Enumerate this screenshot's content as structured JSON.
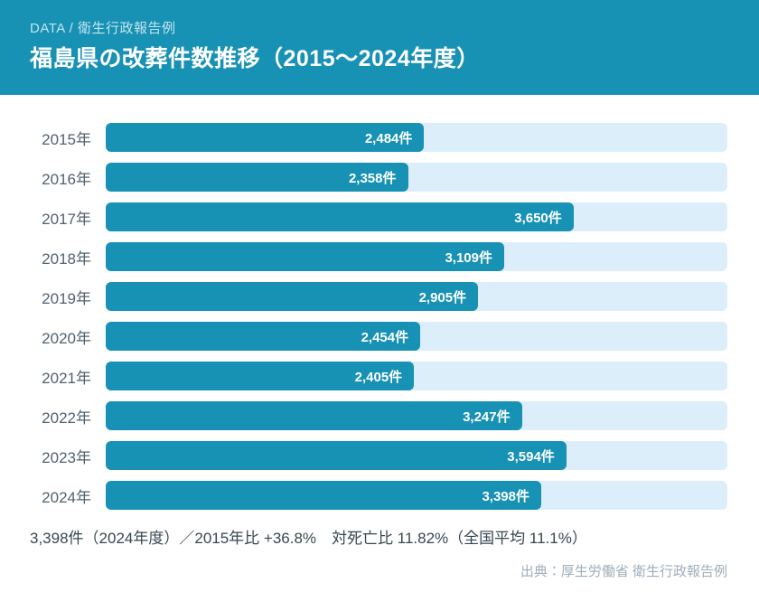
{
  "header": {
    "kicker": "DATA / 衛生行政報告例",
    "title": "福島県の改葬件数推移（2015～2024年度）"
  },
  "chart_data": {
    "type": "bar",
    "orientation": "horizontal",
    "title": "福島県の改葬件数推移（2015～2024年度）",
    "categories": [
      "2015年",
      "2016年",
      "2017年",
      "2018年",
      "2019年",
      "2020年",
      "2021年",
      "2022年",
      "2023年",
      "2024年"
    ],
    "values": [
      2484,
      2358,
      3650,
      3109,
      2905,
      2454,
      2405,
      3247,
      3594,
      3398
    ],
    "value_labels": [
      "2,484件",
      "2,358件",
      "3,650件",
      "3,109件",
      "2,905件",
      "2,454件",
      "2,405件",
      "3,247件",
      "3,594件",
      "3,398件"
    ],
    "unit": "件",
    "xlabel": "",
    "ylabel": "",
    "xlim": [
      0,
      4850
    ],
    "grid": false,
    "legend": false
  },
  "summary": "3,398件（2024年度）／2015年比 +36.8%　対死亡比 11.82%（全国平均 11.1%）",
  "source": "出典：厚生労働省 衛生行政報告例",
  "colors": {
    "accent": "#1791b4",
    "track": "#ddeefb",
    "bar_label_text": "#ffffff",
    "year_label_text": "#51626e",
    "summary_text": "#37474f",
    "source_text": "#9fadbb"
  }
}
